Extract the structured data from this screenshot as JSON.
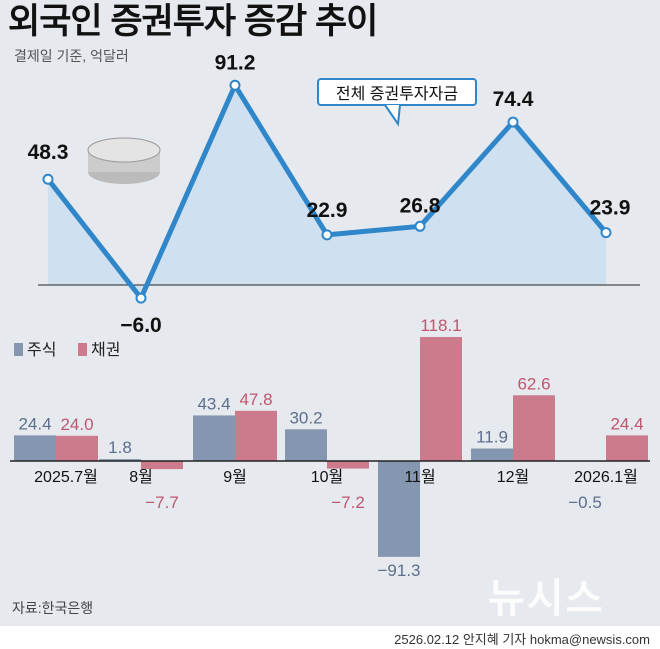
{
  "title": "외국인 증권투자 증감 추이",
  "subtitle": "결제일 기준, 억달러",
  "source": "자료:한국은행",
  "credit": "2526.02.12 안지혜 기자 hokma@newsis.com",
  "logo": "뉴시스",
  "colors": {
    "line": "#2f86c9",
    "area": "#cfe0f1",
    "stocks": "#8596b0",
    "bonds": "#cc7b8d"
  },
  "chart_data": [
    {
      "type": "line",
      "title": "전체 증권투자자금",
      "annotation": "전체 증권투자자금",
      "categories": [
        "2025.7월",
        "8월",
        "9월",
        "10월",
        "11월",
        "12월",
        "2026.1월"
      ],
      "values": [
        48.3,
        -6.0,
        91.2,
        22.9,
        26.8,
        74.4,
        23.9
      ],
      "labels": [
        "48.3",
        "−6.0",
        "91.2",
        "22.9",
        "26.8",
        "74.4",
        "23.9"
      ]
    },
    {
      "type": "bar",
      "categories": [
        "2025.7월",
        "8월",
        "9월",
        "10월",
        "11월",
        "12월",
        "2026.1월"
      ],
      "series": [
        {
          "name": "주식",
          "values": [
            24.4,
            1.8,
            43.4,
            30.2,
            -91.3,
            11.9,
            -0.5
          ],
          "labels": [
            "24.4",
            "1.8",
            "43.4",
            "30.2",
            "−91.3",
            "11.9",
            "−0.5"
          ]
        },
        {
          "name": "채권",
          "values": [
            24.0,
            -7.7,
            47.8,
            -7.2,
            118.1,
            62.6,
            24.4
          ],
          "labels": [
            "24.0",
            "−7.7",
            "47.8",
            "−7.2",
            "118.1",
            "62.6",
            "24.4"
          ]
        }
      ]
    }
  ]
}
